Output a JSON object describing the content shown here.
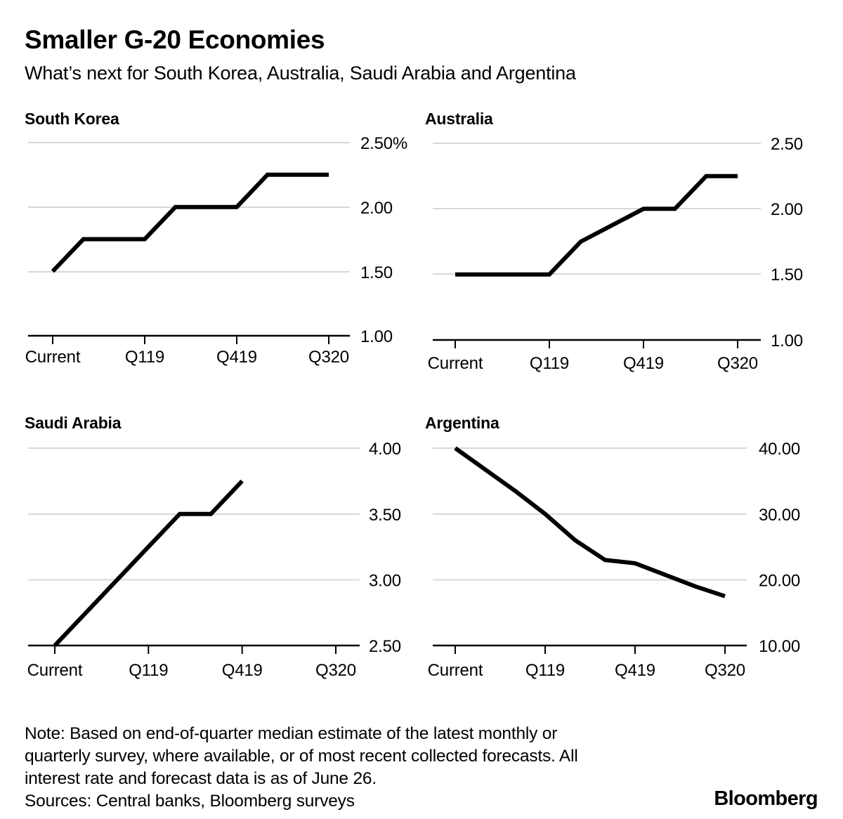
{
  "header": {
    "title": "Smaller G-20 Economies",
    "subtitle": "What’s next for South Korea, Australia, Saudi Arabia and Argentina"
  },
  "colors": {
    "line": "#000000",
    "grid": "#d8d8d8",
    "axis": "#000000",
    "text": "#000000",
    "background": "#ffffff"
  },
  "chart_data": [
    {
      "type": "line",
      "title": "South Korea",
      "x_visible_ticks": [
        "Current",
        "Q119",
        "Q419",
        "Q320"
      ],
      "x_tick_indices": [
        0,
        3,
        6,
        9
      ],
      "x_note": "10 quarterly points from Current to Q320",
      "values": [
        1.5,
        1.75,
        1.75,
        1.75,
        2.0,
        2.0,
        2.0,
        2.25,
        2.25,
        2.25
      ],
      "ylim": [
        1.0,
        2.5
      ],
      "yticks": [
        2.5,
        2.0,
        1.5,
        1.0
      ],
      "ytick_labels": [
        "2.50%",
        "2.00",
        "1.50",
        "1.00"
      ],
      "grid": true,
      "legend": "none"
    },
    {
      "type": "line",
      "title": "Australia",
      "x_visible_ticks": [
        "Current",
        "Q119",
        "Q419",
        "Q320"
      ],
      "x_tick_indices": [
        0,
        3,
        6,
        9
      ],
      "x_note": "10 quarterly points from Current to Q320",
      "values": [
        1.5,
        1.5,
        1.5,
        1.5,
        1.75,
        1.875,
        2.0,
        2.0,
        2.25,
        2.25
      ],
      "ylim": [
        1.0,
        2.5
      ],
      "yticks": [
        2.5,
        2.0,
        1.5,
        1.0
      ],
      "ytick_labels": [
        "2.50",
        "2.00",
        "1.50",
        "1.00"
      ],
      "grid": true,
      "legend": "none"
    },
    {
      "type": "line",
      "title": "Saudi Arabia",
      "x_visible_ticks": [
        "Current",
        "Q119",
        "Q419",
        "Q320"
      ],
      "x_tick_indices": [
        0,
        3,
        6,
        9
      ],
      "x_note": "series ends at Q419 (7 quarterly points)",
      "values": [
        2.5,
        2.75,
        3.0,
        3.25,
        3.5,
        3.5,
        3.75
      ],
      "ylim": [
        2.5,
        4.0
      ],
      "yticks": [
        4.0,
        3.5,
        3.0,
        2.5
      ],
      "ytick_labels": [
        "4.00",
        "3.50",
        "3.00",
        "2.50"
      ],
      "grid": true,
      "legend": "none"
    },
    {
      "type": "line",
      "title": "Argentina",
      "x_visible_ticks": [
        "Current",
        "Q119",
        "Q419",
        "Q320"
      ],
      "x_tick_indices": [
        0,
        3,
        6,
        9
      ],
      "x_note": "10 quarterly points from Current to Q320",
      "values": [
        40.0,
        36.75,
        33.5,
        30.0,
        26.0,
        23.0,
        22.5,
        20.75,
        19.0,
        17.5
      ],
      "ylim": [
        10.0,
        40.0
      ],
      "yticks": [
        40.0,
        30.0,
        20.0,
        10.0
      ],
      "ytick_labels": [
        "40.00",
        "30.00",
        "20.00",
        "10.00"
      ],
      "grid": true,
      "legend": "none"
    }
  ],
  "footer": {
    "note_lines": [
      "Note: Based on end-of-quarter median estimate of the latest monthly or",
      "quarterly survey, where available, or of most recent collected forecasts. All",
      "interest rate and forecast data is as of June 26."
    ],
    "sources": "Sources: Central banks, Bloomberg surveys",
    "logo": "Bloomberg"
  }
}
